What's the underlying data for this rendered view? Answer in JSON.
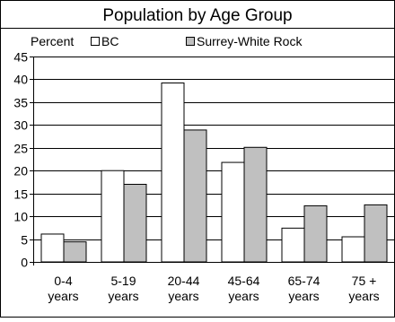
{
  "chart_data": {
    "type": "bar",
    "title": "Population by Age Group",
    "ylabel": "Percent",
    "xlabel": "",
    "ylim": [
      0,
      45
    ],
    "yticks": [
      0,
      5,
      10,
      15,
      20,
      25,
      30,
      35,
      40,
      45
    ],
    "grid": true,
    "legend_position": "top",
    "categories": [
      [
        "0-4",
        "years"
      ],
      [
        "5-19",
        "years"
      ],
      [
        "20-44",
        "years"
      ],
      [
        "45-64",
        "years"
      ],
      [
        "65-74",
        "years"
      ],
      [
        "75 +",
        "years"
      ]
    ],
    "series": [
      {
        "name": "BC",
        "color": "#ffffff",
        "values": [
          6.1,
          20.0,
          39.2,
          21.8,
          7.4,
          5.5
        ]
      },
      {
        "name": "Surrey-White Rock",
        "color": "#c0c0c0",
        "values": [
          4.4,
          17.0,
          28.9,
          25.1,
          12.3,
          12.5
        ]
      }
    ]
  }
}
